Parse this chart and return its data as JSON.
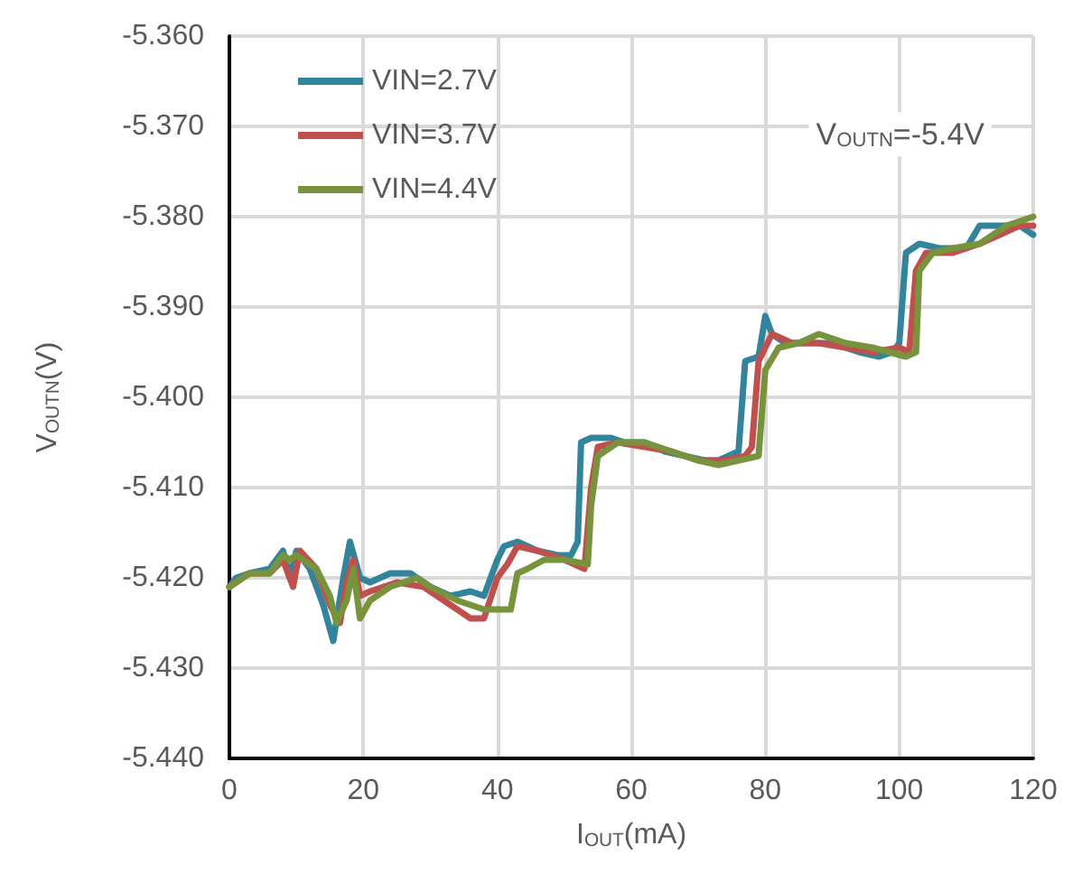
{
  "chart_data": {
    "type": "line",
    "xlabel": "I$_{OUT}$(mA)",
    "ylabel": "V$_{OUTN}$(V)",
    "annotations": [
      "V$_{OUTN}$=-5.4V"
    ],
    "xlim": [
      0,
      120
    ],
    "xticks": [
      0,
      20,
      40,
      60,
      80,
      100,
      120
    ],
    "ylim": [
      -5.44,
      -5.36
    ],
    "yticks": [
      {
        "value": -5.44,
        "label": "-5.440"
      },
      {
        "value": -5.43,
        "label": "-5.430"
      },
      {
        "value": -5.42,
        "label": "-5.420"
      },
      {
        "value": -5.41,
        "label": "-5.410"
      },
      {
        "value": -5.4,
        "label": "-5.400"
      },
      {
        "value": -5.39,
        "label": "-5.390"
      },
      {
        "value": -5.38,
        "label": "-5.380"
      },
      {
        "value": -5.37,
        "label": "-5.370"
      },
      {
        "value": -5.36,
        "label": "-5.360"
      }
    ],
    "grid": true,
    "legend": "top left",
    "marker": "none",
    "line_style": "solid",
    "series": [
      {
        "name": "VIN=2.7V",
        "color": "#31849b",
        "x": [
          0,
          1,
          3,
          6,
          8,
          9,
          10,
          12,
          14,
          15.5,
          17,
          18,
          19.5,
          21,
          24,
          27,
          30,
          33,
          36,
          38,
          40,
          41,
          43,
          46,
          49,
          51,
          52,
          52.5,
          54,
          55,
          57,
          59,
          62,
          65,
          68,
          71,
          73,
          76,
          77,
          79,
          80,
          81,
          83,
          86,
          90,
          94,
          97,
          99,
          100,
          101,
          103,
          106,
          110,
          112,
          115,
          118,
          120
        ],
        "values": [
          -5.421,
          -5.42,
          -5.4195,
          -5.419,
          -5.417,
          -5.42,
          -5.417,
          -5.419,
          -5.423,
          -5.427,
          -5.42,
          -5.416,
          -5.42,
          -5.4205,
          -5.4195,
          -5.4195,
          -5.421,
          -5.422,
          -5.4215,
          -5.422,
          -5.418,
          -5.4165,
          -5.416,
          -5.417,
          -5.4175,
          -5.4175,
          -5.416,
          -5.405,
          -5.4045,
          -5.4045,
          -5.4045,
          -5.405,
          -5.405,
          -5.406,
          -5.4065,
          -5.407,
          -5.407,
          -5.406,
          -5.396,
          -5.3955,
          -5.391,
          -5.393,
          -5.394,
          -5.394,
          -5.394,
          -5.395,
          -5.3955,
          -5.395,
          -5.394,
          -5.384,
          -5.383,
          -5.3835,
          -5.3835,
          -5.381,
          -5.381,
          -5.381,
          -5.382
        ]
      },
      {
        "name": "VIN=3.7V",
        "color": "#c0504d",
        "x": [
          0,
          3,
          6,
          8,
          9.5,
          10.5,
          13,
          15,
          16.5,
          17.5,
          18.5,
          19.5,
          21,
          25,
          29,
          33,
          36,
          38,
          40,
          41.5,
          43,
          46,
          50,
          53,
          54,
          55,
          58,
          62,
          66,
          70,
          74,
          77,
          78,
          79,
          81,
          84,
          88,
          92,
          96,
          100,
          101.5,
          102.5,
          104,
          108,
          112,
          115,
          118,
          120
        ],
        "values": [
          -5.421,
          -5.4195,
          -5.4195,
          -5.418,
          -5.421,
          -5.417,
          -5.419,
          -5.423,
          -5.425,
          -5.4205,
          -5.418,
          -5.422,
          -5.4215,
          -5.4205,
          -5.421,
          -5.423,
          -5.4245,
          -5.4245,
          -5.42,
          -5.4185,
          -5.4165,
          -5.417,
          -5.418,
          -5.419,
          -5.41,
          -5.4055,
          -5.405,
          -5.4055,
          -5.406,
          -5.407,
          -5.407,
          -5.4065,
          -5.4055,
          -5.396,
          -5.393,
          -5.394,
          -5.394,
          -5.3945,
          -5.395,
          -5.3945,
          -5.395,
          -5.386,
          -5.384,
          -5.384,
          -5.383,
          -5.382,
          -5.381,
          -5.381
        ]
      },
      {
        "name": "VIN=4.4V",
        "color": "#77933c",
        "x": [
          0,
          3,
          6,
          8,
          9,
          10,
          13,
          15,
          16,
          17.5,
          18.5,
          19.5,
          21,
          24,
          28,
          30,
          34,
          38,
          41,
          42,
          43,
          44.5,
          47,
          50,
          53.5,
          54,
          55,
          58,
          62,
          66,
          70,
          73,
          76,
          79,
          80,
          82,
          85,
          88,
          92,
          96,
          101,
          102.5,
          103,
          105,
          108,
          112,
          116,
          120
        ],
        "values": [
          -5.421,
          -5.4195,
          -5.4195,
          -5.4175,
          -5.418,
          -5.4175,
          -5.419,
          -5.422,
          -5.425,
          -5.4225,
          -5.419,
          -5.4245,
          -5.4225,
          -5.421,
          -5.42,
          -5.421,
          -5.4225,
          -5.4235,
          -5.4235,
          -5.4235,
          -5.4195,
          -5.419,
          -5.418,
          -5.418,
          -5.4185,
          -5.412,
          -5.4065,
          -5.405,
          -5.405,
          -5.406,
          -5.407,
          -5.4075,
          -5.407,
          -5.4065,
          -5.397,
          -5.3945,
          -5.394,
          -5.393,
          -5.394,
          -5.3945,
          -5.3955,
          -5.395,
          -5.386,
          -5.384,
          -5.3835,
          -5.383,
          -5.381,
          -5.38
        ]
      }
    ]
  }
}
